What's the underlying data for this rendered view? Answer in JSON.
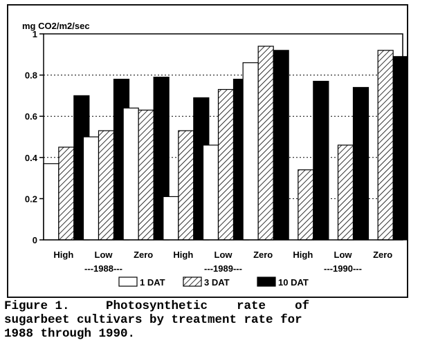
{
  "chart_data": {
    "type": "bar",
    "ylabel": "mg CO2/m2/sec",
    "ylim": [
      0,
      1
    ],
    "yticks": [
      "0",
      "0.2",
      "0.4",
      "0.6",
      "0.8",
      "1"
    ],
    "grid": "horizontal dotted",
    "categories": [
      "High",
      "Low",
      "Zero",
      "High",
      "Low",
      "Zero",
      "High",
      "Low",
      "Zero"
    ],
    "year_groups": [
      {
        "label": "---1988---"
      },
      {
        "label": "---1989---"
      },
      {
        "label": "---1990---"
      }
    ],
    "series": [
      {
        "name": "1 DAT",
        "pattern": "open",
        "values": [
          0.37,
          0.5,
          0.64,
          0.21,
          0.46,
          0.86,
          null,
          null,
          null
        ]
      },
      {
        "name": "3 DAT",
        "pattern": "hatched",
        "values": [
          0.45,
          0.53,
          0.63,
          0.53,
          0.73,
          0.94,
          0.34,
          0.46,
          0.92
        ]
      },
      {
        "name": "10 DAT",
        "pattern": "solid",
        "values": [
          0.7,
          0.78,
          0.79,
          0.69,
          0.78,
          0.92,
          0.77,
          0.74,
          0.89
        ]
      }
    ],
    "legend": "bottom"
  },
  "caption": {
    "lines": [
      "Figure 1.     Photosynthetic    rate    of",
      "sugarbeet cultivars by treatment rate for",
      "1988 through 1990."
    ]
  }
}
